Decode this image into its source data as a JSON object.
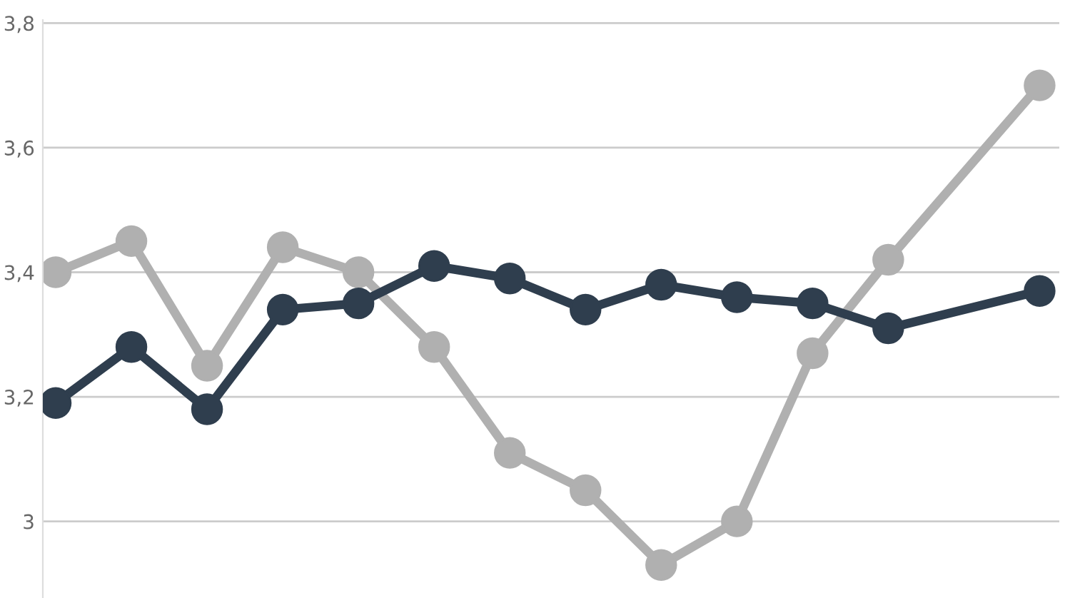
{
  "chart_data": {
    "type": "line",
    "categories": [
      null,
      null,
      null,
      null,
      null,
      null,
      null,
      null,
      null,
      null,
      null,
      null,
      null,
      null
    ],
    "series": [
      {
        "color": "#b0b0b0",
        "values": [
          3.4,
          3.45,
          3.25,
          3.44,
          3.4,
          3.28,
          3.11,
          3.05,
          2.93,
          3.0,
          3.27,
          3.42,
          null,
          3.7
        ]
      },
      {
        "color": "#2f3e4e",
        "values": [
          3.19,
          3.28,
          3.18,
          3.34,
          3.35,
          3.41,
          3.39,
          3.34,
          3.38,
          3.36,
          3.35,
          3.31,
          null,
          3.37
        ]
      }
    ],
    "ylim": [
      2.877,
      3.805
    ],
    "yticks": [
      3,
      {
        "value": 3.2,
        "label": "3,2"
      },
      {
        "value": 3.4,
        "label": "3,4"
      },
      {
        "value": 3.6,
        "label": "3,6"
      },
      {
        "value": 3.8,
        "label": "3,8"
      }
    ],
    "grid": "y",
    "marker": "circle",
    "line_style": "solid",
    "legend": false
  }
}
